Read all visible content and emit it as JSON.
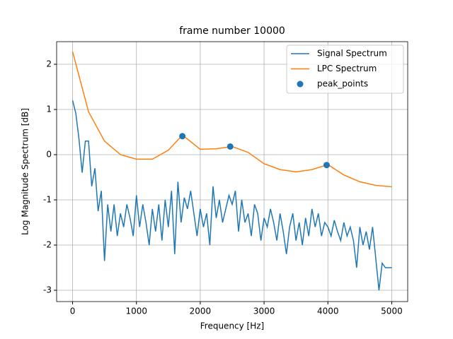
{
  "chart_data": {
    "type": "line",
    "title": "frame number 10000",
    "x_label": "Frequency [Hz]",
    "y_label": "Log Magnitude Spectrum [dB]",
    "xlim": [
      -250,
      5250
    ],
    "ylim": [
      -3.25,
      2.5
    ],
    "xticks": [
      0,
      1000,
      2000,
      3000,
      4000,
      5000
    ],
    "yticks": [
      -3,
      -2,
      -1,
      0,
      1,
      2
    ],
    "grid": true,
    "legend": "upper right",
    "series": [
      {
        "name": "Signal Spectrum",
        "type": "line",
        "color": "#1f77b4",
        "x": [
          0,
          50,
          100,
          150,
          200,
          250,
          300,
          350,
          400,
          450,
          500,
          550,
          600,
          650,
          700,
          750,
          800,
          850,
          900,
          950,
          1000,
          1050,
          1100,
          1150,
          1200,
          1250,
          1300,
          1350,
          1400,
          1450,
          1500,
          1550,
          1600,
          1650,
          1700,
          1750,
          1800,
          1850,
          1900,
          1950,
          2000,
          2050,
          2100,
          2150,
          2200,
          2250,
          2300,
          2350,
          2400,
          2450,
          2500,
          2550,
          2600,
          2650,
          2700,
          2750,
          2800,
          2850,
          2900,
          2950,
          3000,
          3050,
          3100,
          3150,
          3200,
          3250,
          3300,
          3350,
          3400,
          3450,
          3500,
          3550,
          3600,
          3650,
          3700,
          3750,
          3800,
          3850,
          3900,
          3950,
          4000,
          4050,
          4100,
          4150,
          4200,
          4250,
          4300,
          4350,
          4400,
          4450,
          4500,
          4550,
          4600,
          4650,
          4700,
          4750,
          4800,
          4850,
          4900,
          4950,
          5000
        ],
        "values": [
          1.2,
          0.92,
          0.35,
          -0.4,
          0.3,
          0.3,
          -0.7,
          -0.3,
          -1.25,
          -0.8,
          -2.35,
          -1.1,
          -1.7,
          -1.1,
          -1.8,
          -1.3,
          -1.6,
          -1.1,
          -1.4,
          -1.8,
          -0.9,
          -1.6,
          -1.1,
          -1.5,
          -2.0,
          -1.2,
          -1.7,
          -1.1,
          -1.9,
          -1.0,
          -1.6,
          -0.8,
          -2.2,
          -0.6,
          -1.5,
          -0.95,
          -1.2,
          -0.8,
          -1.3,
          -1.8,
          -1.2,
          -1.6,
          -1.3,
          -2.0,
          -0.7,
          -1.4,
          -1.0,
          -1.5,
          -1.2,
          -0.9,
          -1.1,
          -0.8,
          -1.7,
          -1.0,
          -1.5,
          -1.3,
          -1.8,
          -1.1,
          -1.3,
          -1.9,
          -1.4,
          -1.6,
          -1.2,
          -1.5,
          -1.9,
          -1.3,
          -1.7,
          -2.2,
          -1.6,
          -1.3,
          -1.9,
          -1.5,
          -2.0,
          -1.4,
          -1.8,
          -1.2,
          -1.6,
          -1.3,
          -1.8,
          -1.5,
          -1.6,
          -1.8,
          -1.45,
          -1.7,
          -1.9,
          -1.5,
          -1.8,
          -1.6,
          -1.9,
          -2.5,
          -1.6,
          -2.0,
          -1.7,
          -2.1,
          -1.6,
          -2.3,
          -3.0,
          -2.4,
          -2.5,
          -2.5,
          -2.5
        ]
      },
      {
        "name": "LPC Spectrum",
        "type": "line",
        "color": "#ff7f0e",
        "x": [
          0,
          250,
          500,
          750,
          1000,
          1250,
          1500,
          1700,
          1750,
          2000,
          2250,
          2500,
          2750,
          3000,
          3250,
          3500,
          3750,
          4000,
          4250,
          4500,
          4750,
          5000
        ],
        "values": [
          2.28,
          0.95,
          0.3,
          0.0,
          -0.1,
          -0.1,
          0.1,
          0.4,
          0.4,
          0.12,
          0.13,
          0.18,
          0.05,
          -0.2,
          -0.33,
          -0.38,
          -0.33,
          -0.22,
          -0.45,
          -0.6,
          -0.68,
          -0.71
        ]
      },
      {
        "name": "peak_points",
        "type": "scatter",
        "color": "#1f77b4",
        "x": [
          1720,
          2470,
          3980
        ],
        "values": [
          0.41,
          0.18,
          -0.23
        ]
      }
    ]
  }
}
